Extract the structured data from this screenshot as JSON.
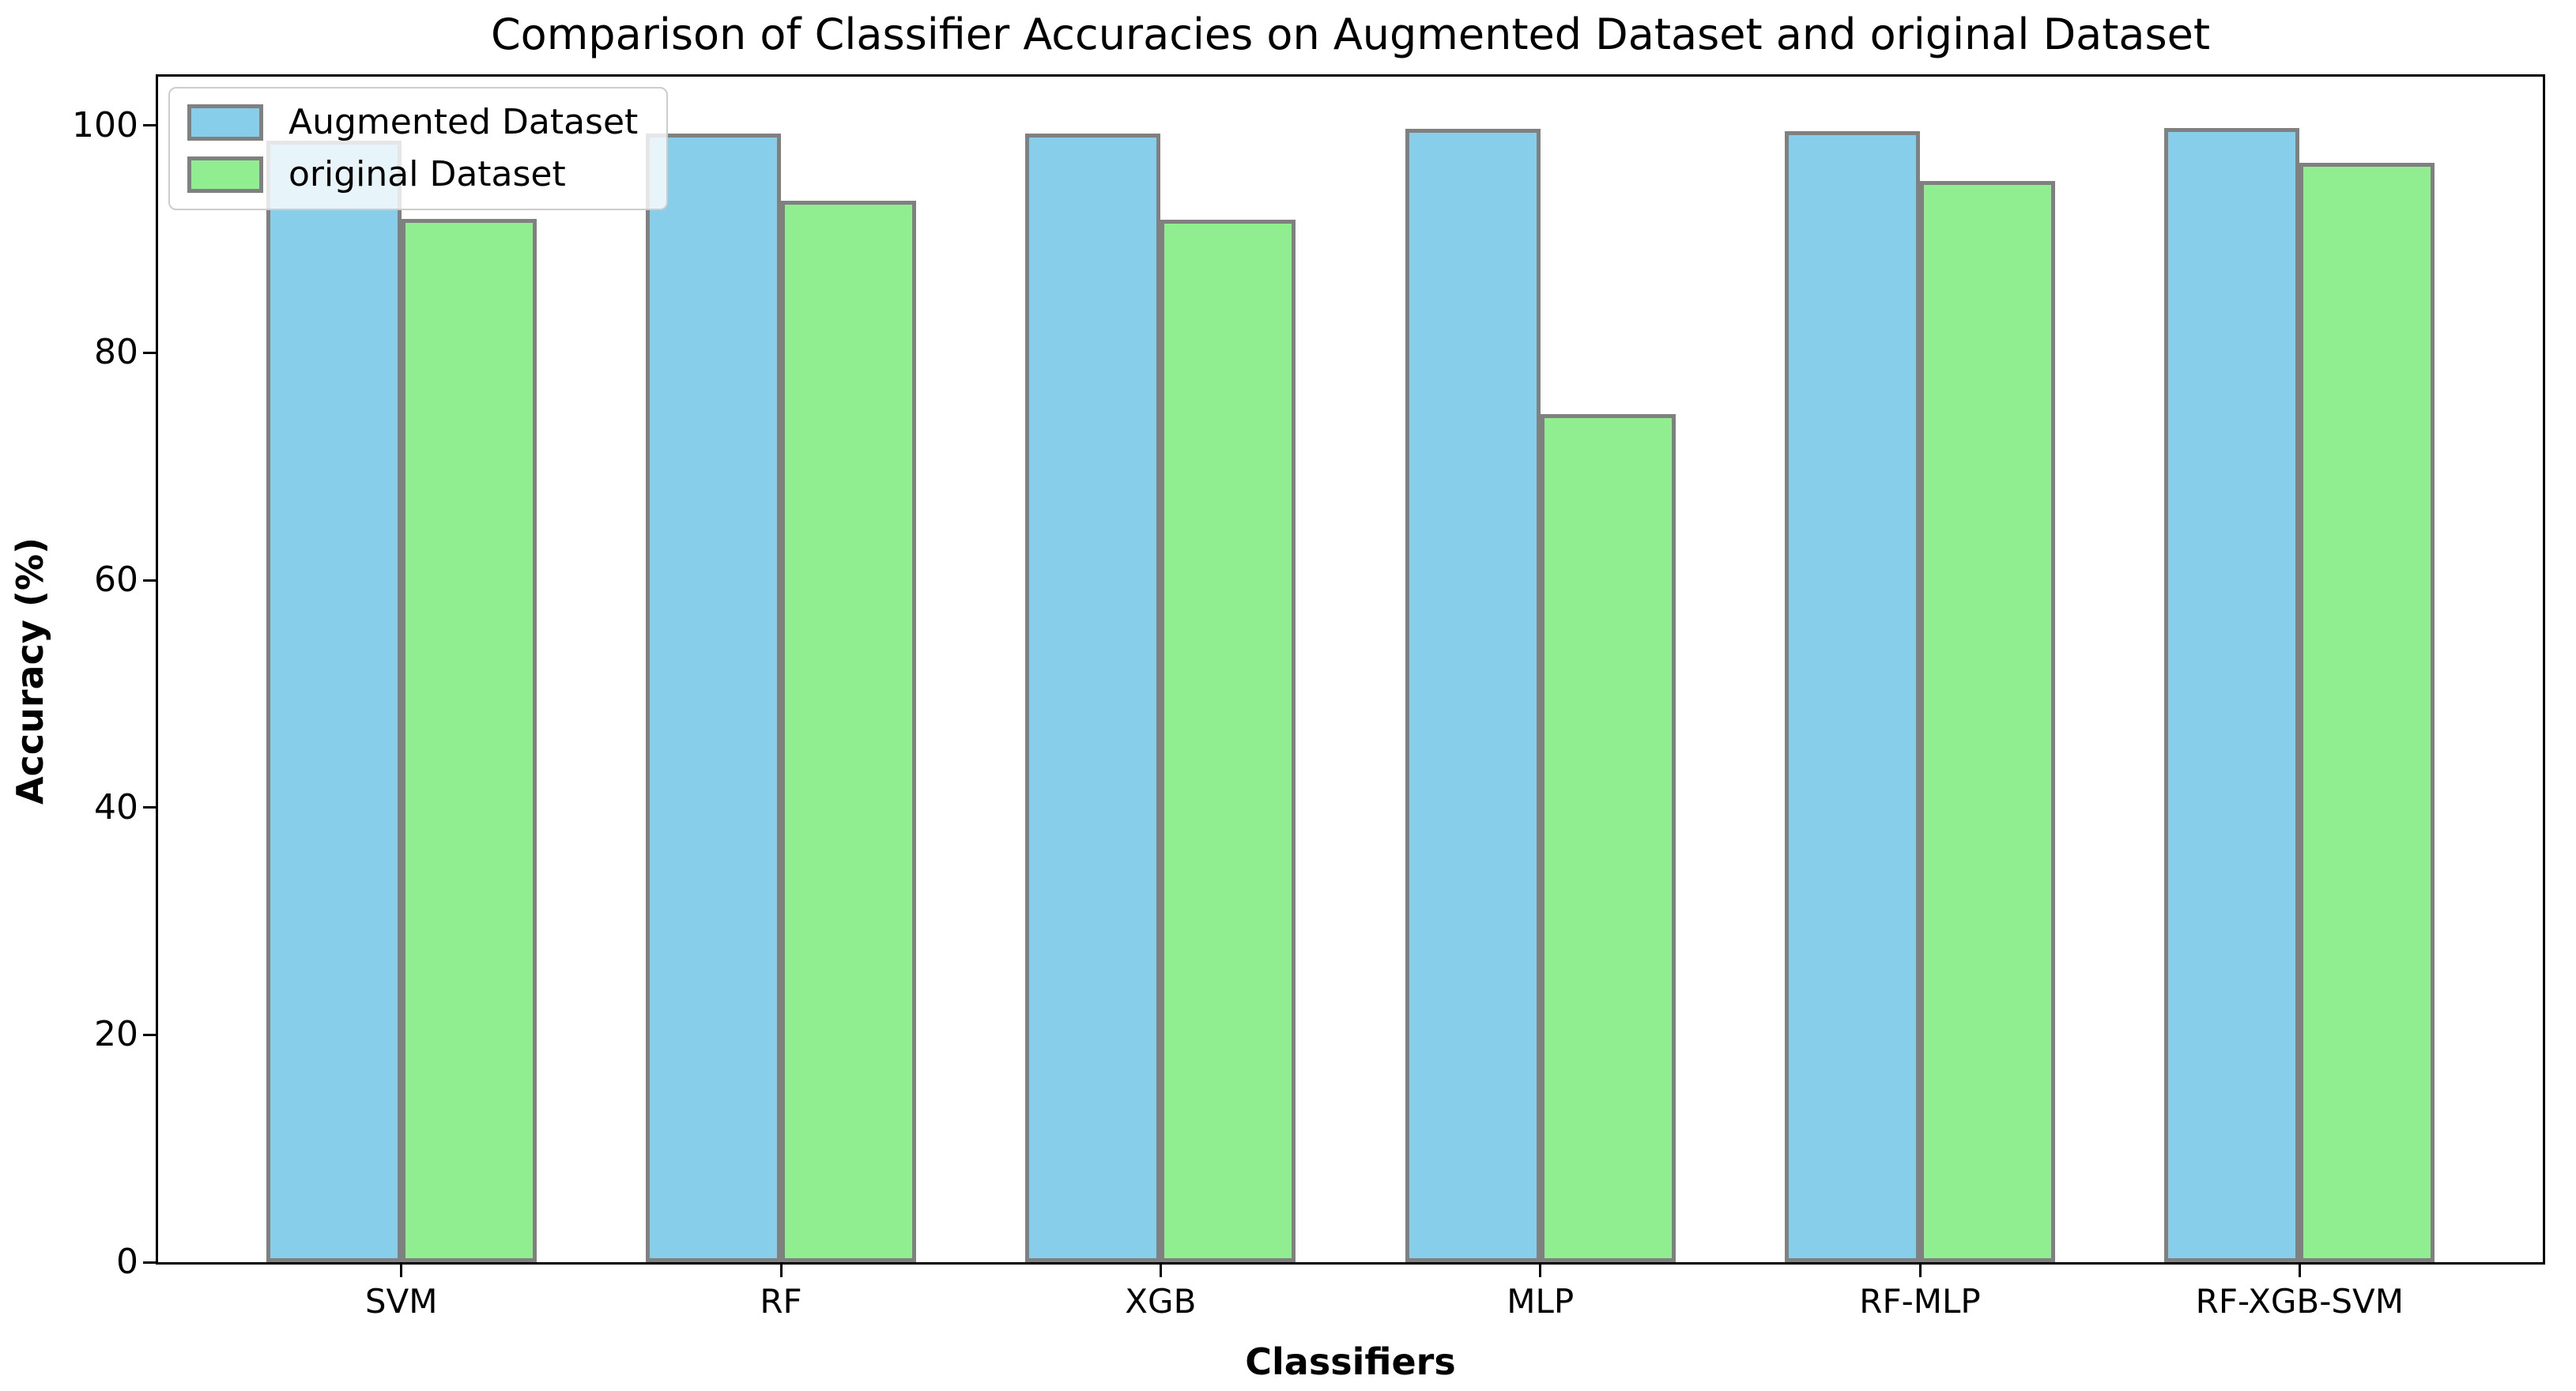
{
  "title": "Comparison of Classifier Accuracies on Augmented Dataset and original Dataset",
  "chart_data": {
    "type": "bar",
    "title": "Comparison of Classifier Accuracies on Augmented Dataset and original Dataset",
    "xlabel": "Classifiers",
    "ylabel": "Accuracy (%)",
    "categories": [
      "SVM",
      "RF",
      "XGB",
      "MLP",
      "RF-MLP",
      "RF-XGB-SVM"
    ],
    "series": [
      {
        "name": "Augmented Dataset",
        "color": "#87CEEB",
        "values": [
          98.7,
          99.3,
          99.3,
          99.7,
          99.5,
          99.8
        ]
      },
      {
        "name": "original Dataset",
        "color": "#90EE90",
        "values": [
          91.8,
          93.4,
          91.7,
          74.6,
          95.1,
          96.7
        ]
      }
    ],
    "yticks": [
      0,
      20,
      40,
      60,
      80,
      100
    ],
    "ylim": [
      0,
      104.3
    ],
    "bar_edge_color": "#808080",
    "axis_color": "#000000",
    "legend_position": "upper-left",
    "legend_border_color": "#cccccc",
    "grid": false
  }
}
